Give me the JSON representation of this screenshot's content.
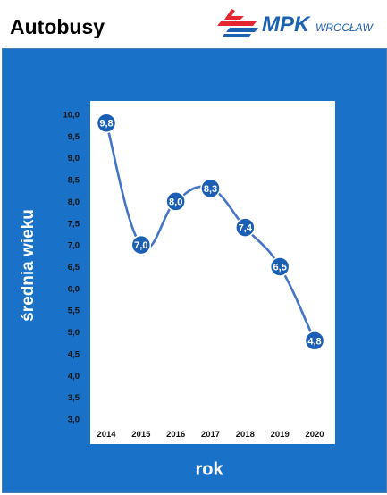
{
  "header": {
    "title": "Autobusy"
  },
  "logo": {
    "brand": "MPK",
    "city": "WROCŁAW",
    "accent_red": "#e3262f",
    "accent_blue": "#1b61b0"
  },
  "colors": {
    "panel": "#1a72c8",
    "line": "#4474c4",
    "marker": "#1b5fb4"
  },
  "chart_data": {
    "type": "line",
    "title": "",
    "xlabel": "rok",
    "ylabel": "średnia wieku",
    "categories": [
      "2014",
      "2015",
      "2016",
      "2017",
      "2018",
      "2019",
      "2020"
    ],
    "values": [
      9.8,
      7.0,
      8.0,
      8.3,
      7.4,
      6.5,
      4.8
    ],
    "data_labels": [
      "9,8",
      "7,0",
      "8,0",
      "8,3",
      "7,4",
      "6,5",
      "4,8"
    ],
    "ylim": [
      3.0,
      10.0
    ],
    "yticks": [
      "3,0",
      "3,5",
      "4,0",
      "4,5",
      "5,0",
      "5,5",
      "6,0",
      "6,5",
      "7,0",
      "7,5",
      "8,0",
      "8,5",
      "9,0",
      "9,5",
      "10,0"
    ],
    "smooth": true,
    "grid": false,
    "legend": false
  }
}
